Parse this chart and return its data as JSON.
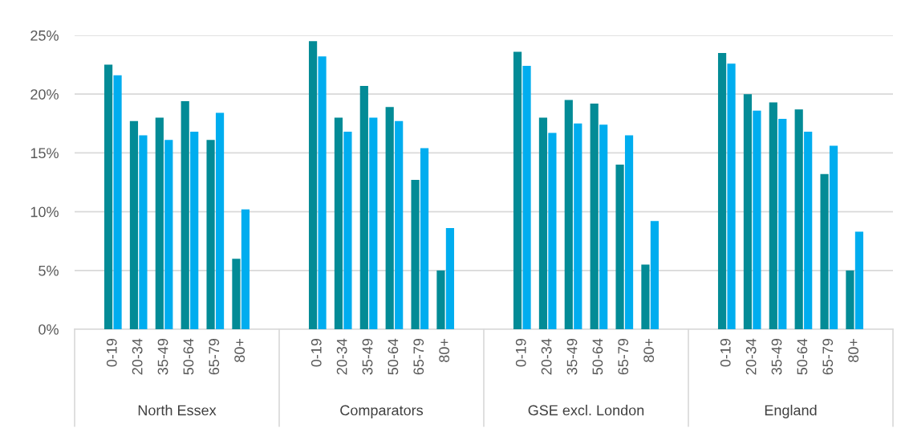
{
  "chart_data": {
    "type": "bar",
    "categories": [
      null,
      "0-19",
      "20-34",
      "35-49",
      "50-64",
      "65-79",
      "80+",
      null,
      null,
      "0-19",
      "20-34",
      "35-49",
      "50-64",
      "65-79",
      "80+",
      null,
      null,
      "0-19",
      "20-34",
      "35-49",
      "50-64",
      "65-79",
      "80+",
      null,
      null,
      "0-19",
      "20-34",
      "35-49",
      "50-64",
      "65-79",
      "80+",
      null
    ],
    "series": [
      {
        "color": "#038b96",
        "values": [
          null,
          22.5,
          17.7,
          18.0,
          19.4,
          16.1,
          6.0,
          null,
          null,
          24.5,
          18.0,
          20.7,
          18.9,
          12.7,
          5.0,
          null,
          null,
          23.6,
          18.0,
          19.5,
          19.2,
          14.0,
          5.5,
          null,
          null,
          23.5,
          20.0,
          19.3,
          18.7,
          13.2,
          5.0,
          null
        ]
      },
      {
        "color": "#00adef",
        "values": [
          null,
          21.6,
          16.5,
          16.1,
          16.8,
          18.4,
          10.2,
          null,
          null,
          23.2,
          16.8,
          18.0,
          17.7,
          15.4,
          8.6,
          null,
          null,
          22.4,
          16.7,
          17.5,
          17.4,
          16.5,
          9.2,
          null,
          null,
          22.6,
          18.6,
          17.9,
          16.8,
          15.6,
          8.3,
          null
        ]
      }
    ],
    "annotations": [
      "North Essex",
      "Comparators",
      "GSE excl. London",
      "England"
    ],
    "ylim": [
      0,
      25
    ],
    "yticks": [
      {
        "value": 0,
        "label": "0%"
      },
      {
        "value": 5,
        "label": "5%"
      },
      {
        "value": 10,
        "label": "10%"
      },
      {
        "value": 15,
        "label": "15%"
      },
      {
        "value": 20,
        "label": "20%"
      },
      {
        "value": 25,
        "label": "25%"
      }
    ],
    "grid": "y"
  }
}
